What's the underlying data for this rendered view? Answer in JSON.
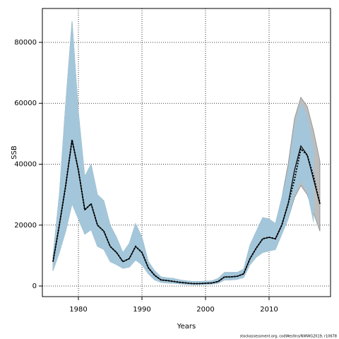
{
  "chart_data": {
    "type": "band-line",
    "xlabel": "Years",
    "ylabel": "SSB",
    "caption": "stockassessment.org, codWestIns/NWWG2019, r10678",
    "x": [
      1976,
      1977,
      1978,
      1979,
      1980,
      1981,
      1982,
      1983,
      1984,
      1985,
      1986,
      1987,
      1988,
      1989,
      1990,
      1991,
      1992,
      1993,
      1994,
      1995,
      1996,
      1997,
      1998,
      1999,
      2000,
      2001,
      2002,
      2003,
      2004,
      2005,
      2006,
      2007,
      2008,
      2009,
      2010,
      2011,
      2012,
      2013,
      2014,
      2015,
      2016,
      2017,
      2018
    ],
    "xlim": [
      1974.33,
      2019.67
    ],
    "ylim": [
      -3478,
      91130
    ],
    "xticks": [
      1980,
      1990,
      2000,
      2010
    ],
    "yticks": [
      0,
      20000,
      40000,
      60000,
      80000
    ],
    "grid": true,
    "bands": [
      {
        "color": "#bdbdbd",
        "edge": "#8c8c8c",
        "upper": [
          10000,
          30000,
          60000,
          87000,
          57000,
          36000,
          40000,
          30000,
          28000,
          20000,
          16000,
          11000,
          14000,
          20500,
          16000,
          8000,
          5000,
          3000,
          2700,
          2500,
          2000,
          1700,
          1500,
          1500,
          1600,
          1700,
          2500,
          4500,
          4500,
          4500,
          5500,
          13500,
          18000,
          22500,
          22000,
          20500,
          29000,
          40000,
          55000,
          62000,
          59000,
          51000,
          41000
        ],
        "lower": [
          5000,
          11000,
          18000,
          27000,
          22000,
          17000,
          18500,
          13000,
          12000,
          8000,
          7000,
          5800,
          6200,
          8500,
          7000,
          4000,
          2000,
          1200,
          1000,
          900,
          700,
          500,
          400,
          400,
          500,
          600,
          900,
          2000,
          2000,
          2200,
          2800,
          7000,
          9500,
          11000,
          11500,
          12000,
          17000,
          22000,
          29000,
          33000,
          30000,
          24000,
          18000
        ]
      },
      {
        "color": "#a3c6da",
        "edge": "#a3c6da",
        "upper": [
          10000,
          30000,
          60000,
          87000,
          57000,
          36000,
          40000,
          30000,
          28000,
          20000,
          16000,
          11000,
          14000,
          20500,
          16000,
          8000,
          5000,
          3000,
          2700,
          2500,
          2000,
          1700,
          1500,
          1500,
          1600,
          1700,
          2500,
          4500,
          4500,
          4500,
          5500,
          13500,
          18000,
          22500,
          22000,
          20500,
          29000,
          38000,
          52000,
          60000,
          56000,
          45000,
          null
        ],
        "lower": [
          5000,
          11000,
          18000,
          27000,
          22000,
          17000,
          18500,
          13000,
          12000,
          8000,
          7000,
          5800,
          6200,
          8500,
          7000,
          4000,
          2000,
          1200,
          1000,
          900,
          700,
          500,
          400,
          400,
          500,
          600,
          900,
          2000,
          2000,
          2200,
          2800,
          7000,
          9500,
          11000,
          11500,
          12000,
          17000,
          22000,
          30000,
          34500,
          31000,
          21000,
          null
        ]
      }
    ],
    "series": [
      {
        "color": "#000000",
        "dash": false,
        "values": [
          8000,
          20000,
          33000,
          48000,
          38000,
          25000,
          27000,
          20000,
          18000,
          13000,
          11000,
          8000,
          9000,
          13000,
          11000,
          6000,
          3500,
          2000,
          1800,
          1500,
          1200,
          1000,
          800,
          800,
          900,
          1000,
          1500,
          3000,
          3000,
          3200,
          4000,
          9000,
          12500,
          15500,
          16000,
          15500,
          20000,
          27000,
          38000,
          46000,
          43000,
          35000,
          27000
        ]
      },
      {
        "color": "#000000",
        "dash": true,
        "values": [
          8000,
          20000,
          33000,
          48000,
          38000,
          25000,
          27000,
          20000,
          18000,
          13000,
          11000,
          8000,
          9000,
          13000,
          11000,
          6000,
          3500,
          2000,
          1800,
          1500,
          1200,
          1000,
          800,
          800,
          900,
          1000,
          1500,
          3000,
          3000,
          3200,
          4000,
          9000,
          12500,
          15500,
          16000,
          15500,
          20000,
          27000,
          35000,
          45000,
          43000,
          36000,
          27000
        ]
      }
    ]
  }
}
